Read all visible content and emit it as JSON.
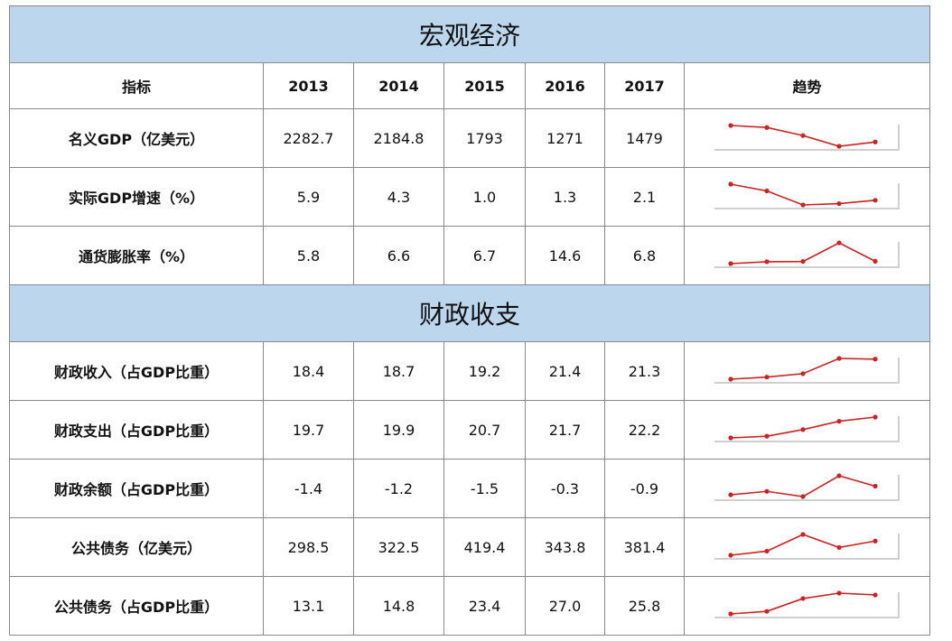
{
  "sections": [
    {
      "title": "宏观经济",
      "header": {
        "label_col": "指标",
        "years": [
          "2013",
          "2014",
          "2015",
          "2016",
          "2017"
        ],
        "trend_col": "趋势"
      },
      "rows": [
        {
          "label": "名义GDP（亿美元）",
          "values": [
            "2282.7",
            "2184.8",
            "1793",
            "1271",
            "1479"
          ],
          "series": [
            2282.7,
            2184.8,
            1793,
            1271,
            1479
          ]
        },
        {
          "label": "实际GDP增速（%）",
          "values": [
            "5.9",
            "4.3",
            "1.0",
            "1.3",
            "2.1"
          ],
          "series": [
            5.9,
            4.3,
            1.0,
            1.3,
            2.1
          ]
        },
        {
          "label": "通货膨胀率（%）",
          "values": [
            "5.8",
            "6.6",
            "6.7",
            "14.6",
            "6.8"
          ],
          "series": [
            5.8,
            6.6,
            6.7,
            14.6,
            6.8
          ]
        }
      ]
    },
    {
      "title": "财政收支",
      "rows": [
        {
          "label": "财政收入（占GDP比重）",
          "values": [
            "18.4",
            "18.7",
            "19.2",
            "21.4",
            "21.3"
          ],
          "series": [
            18.4,
            18.7,
            19.2,
            21.4,
            21.3
          ]
        },
        {
          "label": "财政支出（占GDP比重）",
          "values": [
            "19.7",
            "19.9",
            "20.7",
            "21.7",
            "22.2"
          ],
          "series": [
            19.7,
            19.9,
            20.7,
            21.7,
            22.2
          ]
        },
        {
          "label": "财政余额（占GDP比重）",
          "values": [
            "-1.4",
            "-1.2",
            "-1.5",
            "-0.3",
            "-0.9"
          ],
          "series": [
            -1.4,
            -1.2,
            -1.5,
            -0.3,
            -0.9
          ]
        },
        {
          "label": "公共债务（亿美元）",
          "values": [
            "298.5",
            "322.5",
            "419.4",
            "343.8",
            "381.4"
          ],
          "series": [
            298.5,
            322.5,
            419.4,
            343.8,
            381.4
          ]
        },
        {
          "label": "公共债务（占GDP比重）",
          "values": [
            "13.1",
            "14.8",
            "23.4",
            "27.0",
            "25.8"
          ],
          "series": [
            13.1,
            14.8,
            23.4,
            27.0,
            25.8
          ]
        }
      ]
    }
  ],
  "colors": {
    "section_bg": "#bcd6ee",
    "sparkline": "#cc2222",
    "grid": "#8a8a8a"
  }
}
